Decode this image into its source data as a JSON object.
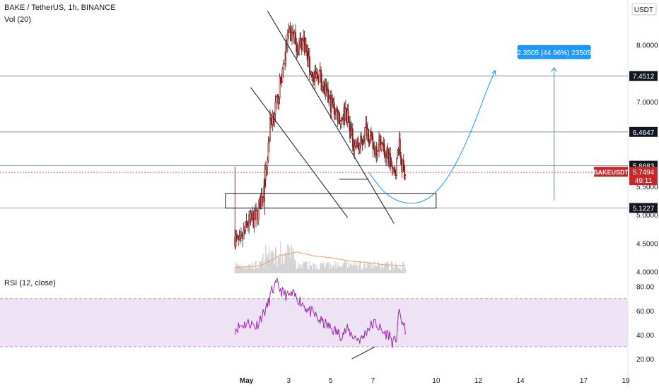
{
  "header": {
    "symbol_line": "BAKE / TetherUS, 1h, BINANCE",
    "volume_label": "Vol (20)",
    "rsi_label": "RSI (12, close)"
  },
  "colors": {
    "up": "#26a69a",
    "candle": "#8b1a1a",
    "wick": "#5a0f0f",
    "price_line": "#c62828",
    "projection": "#2196f3",
    "rsi_line": "#9c27b0",
    "rsi_band": "#e8d9f2",
    "volume_ma": "#ef9a68",
    "level": "#787b86"
  },
  "chart_data": [
    {
      "type": "candlestick",
      "title": "BAKE / TetherUS, 1h, BINANCE",
      "currency": "USDT",
      "symbol_tag": "BAKEUSDT",
      "current_price": 5.7494,
      "countdown": "49:11",
      "ylim": [
        3.93,
        8.62
      ],
      "price_axis_ticks": [
        "8.0000",
        "7.0000",
        "5.5000",
        "5.0000",
        "4.5000",
        "4.0000"
      ],
      "price_axis_tick_values": [
        8.0,
        7.0,
        5.5,
        5.0,
        4.5,
        4.0
      ],
      "levels": [
        {
          "value": 7.4512,
          "label": "7.4512"
        },
        {
          "value": 6.4647,
          "label": "6.4647"
        },
        {
          "value": 5.8683,
          "label": "5.8683"
        },
        {
          "value": 5.1227,
          "label": "5.1227"
        }
      ],
      "x_axis_ticks": [
        {
          "label": "May",
          "day": 1
        },
        {
          "label": "3",
          "day": 3
        },
        {
          "label": "5",
          "day": 5
        },
        {
          "label": "7",
          "day": 7
        },
        {
          "label": "10",
          "day": 10
        },
        {
          "label": "12",
          "day": 12
        },
        {
          "label": "14",
          "day": 14
        },
        {
          "label": "17",
          "day": 17
        },
        {
          "label": "19",
          "day": 19
        }
      ],
      "x_range_days": [
        -10.7,
        19.1
      ],
      "first_candle_day": 0.45,
      "candle_step_days": 0.0417,
      "close_path": [
        [
          0,
          4.6
        ],
        [
          6,
          4.45
        ],
        [
          14,
          4.85
        ],
        [
          24,
          4.95
        ],
        [
          34,
          5.5
        ],
        [
          40,
          6.6
        ],
        [
          48,
          7.0
        ],
        [
          54,
          7.55
        ],
        [
          60,
          8.1
        ],
        [
          66,
          8.2
        ],
        [
          72,
          7.95
        ],
        [
          78,
          8.1
        ],
        [
          84,
          7.65
        ],
        [
          90,
          7.35
        ],
        [
          96,
          7.5
        ],
        [
          104,
          7.1
        ],
        [
          112,
          6.9
        ],
        [
          120,
          6.7
        ],
        [
          126,
          6.85
        ],
        [
          134,
          6.3
        ],
        [
          142,
          6.2
        ],
        [
          150,
          6.55
        ],
        [
          158,
          6.15
        ],
        [
          166,
          6.3
        ],
        [
          172,
          6.05
        ],
        [
          176,
          6.0
        ],
        [
          180,
          5.7
        ],
        [
          184,
          5.9
        ],
        [
          186,
          6.3
        ],
        [
          190,
          5.85
        ],
        [
          194,
          5.75
        ]
      ],
      "candle_volatility": 0.16,
      "projection_box": {
        "x_days": [
          0.0,
          10.0
        ],
        "y": [
          5.12,
          5.38
        ]
      },
      "projection_label": "2.3505 (44.96%) 23505",
      "projection_arrow": {
        "x_day": 15.6,
        "from": 5.25,
        "to": 7.6
      },
      "channel_lines": [
        {
          "from": [
            2.0,
            8.6
          ],
          "to": [
            8.0,
            4.85
          ]
        },
        {
          "from": [
            1.2,
            7.25
          ],
          "to": [
            5.8,
            4.95
          ]
        }
      ],
      "support_line": {
        "from": [
          5.4,
          5.63
        ],
        "to": [
          6.8,
          5.63
        ]
      },
      "projection_curve": [
        [
          6.8,
          5.75
        ],
        [
          7.6,
          5.35
        ],
        [
          8.6,
          5.18
        ],
        [
          9.6,
          5.25
        ],
        [
          10.6,
          5.65
        ],
        [
          11.6,
          6.4
        ],
        [
          12.4,
          7.2
        ],
        [
          12.8,
          7.55
        ]
      ]
    },
    {
      "type": "bar",
      "title": "Vol (20)",
      "note": "volume histogram with moving average under the price pane",
      "ma_path": [
        [
          0,
          0.15
        ],
        [
          30,
          0.2
        ],
        [
          50,
          0.45
        ],
        [
          70,
          0.55
        ],
        [
          90,
          0.45
        ],
        [
          110,
          0.4
        ],
        [
          130,
          0.32
        ],
        [
          150,
          0.28
        ],
        [
          170,
          0.22
        ],
        [
          194,
          0.2
        ]
      ]
    },
    {
      "type": "line",
      "title": "RSI (12, close)",
      "ylim": [
        13,
        88
      ],
      "axis_ticks": [
        "80.00",
        "60.00",
        "40.00",
        "20.00"
      ],
      "axis_tick_values": [
        80,
        60,
        40,
        20
      ],
      "band": [
        30,
        70
      ],
      "series": [
        {
          "values_path": [
            [
              0,
              45
            ],
            [
              8,
              48
            ],
            [
              16,
              50
            ],
            [
              24,
              47
            ],
            [
              30,
              55
            ],
            [
              36,
              62
            ],
            [
              42,
              76
            ],
            [
              48,
              82
            ],
            [
              54,
              75
            ],
            [
              60,
              72
            ],
            [
              66,
              73
            ],
            [
              72,
              70
            ],
            [
              78,
              65
            ],
            [
              84,
              60
            ],
            [
              90,
              57
            ],
            [
              96,
              52
            ],
            [
              104,
              48
            ],
            [
              112,
              44
            ],
            [
              120,
              40
            ],
            [
              128,
              44
            ],
            [
              136,
              38
            ],
            [
              144,
              36
            ],
            [
              152,
              46
            ],
            [
              160,
              50
            ],
            [
              168,
              42
            ],
            [
              176,
              40
            ],
            [
              180,
              32
            ],
            [
              184,
              38
            ],
            [
              186,
              58
            ],
            [
              190,
              52
            ],
            [
              194,
              42
            ]
          ]
        }
      ],
      "divergence_line": {
        "from": [
          6.0,
          20
        ],
        "to": [
          7.1,
          30
        ]
      }
    }
  ]
}
